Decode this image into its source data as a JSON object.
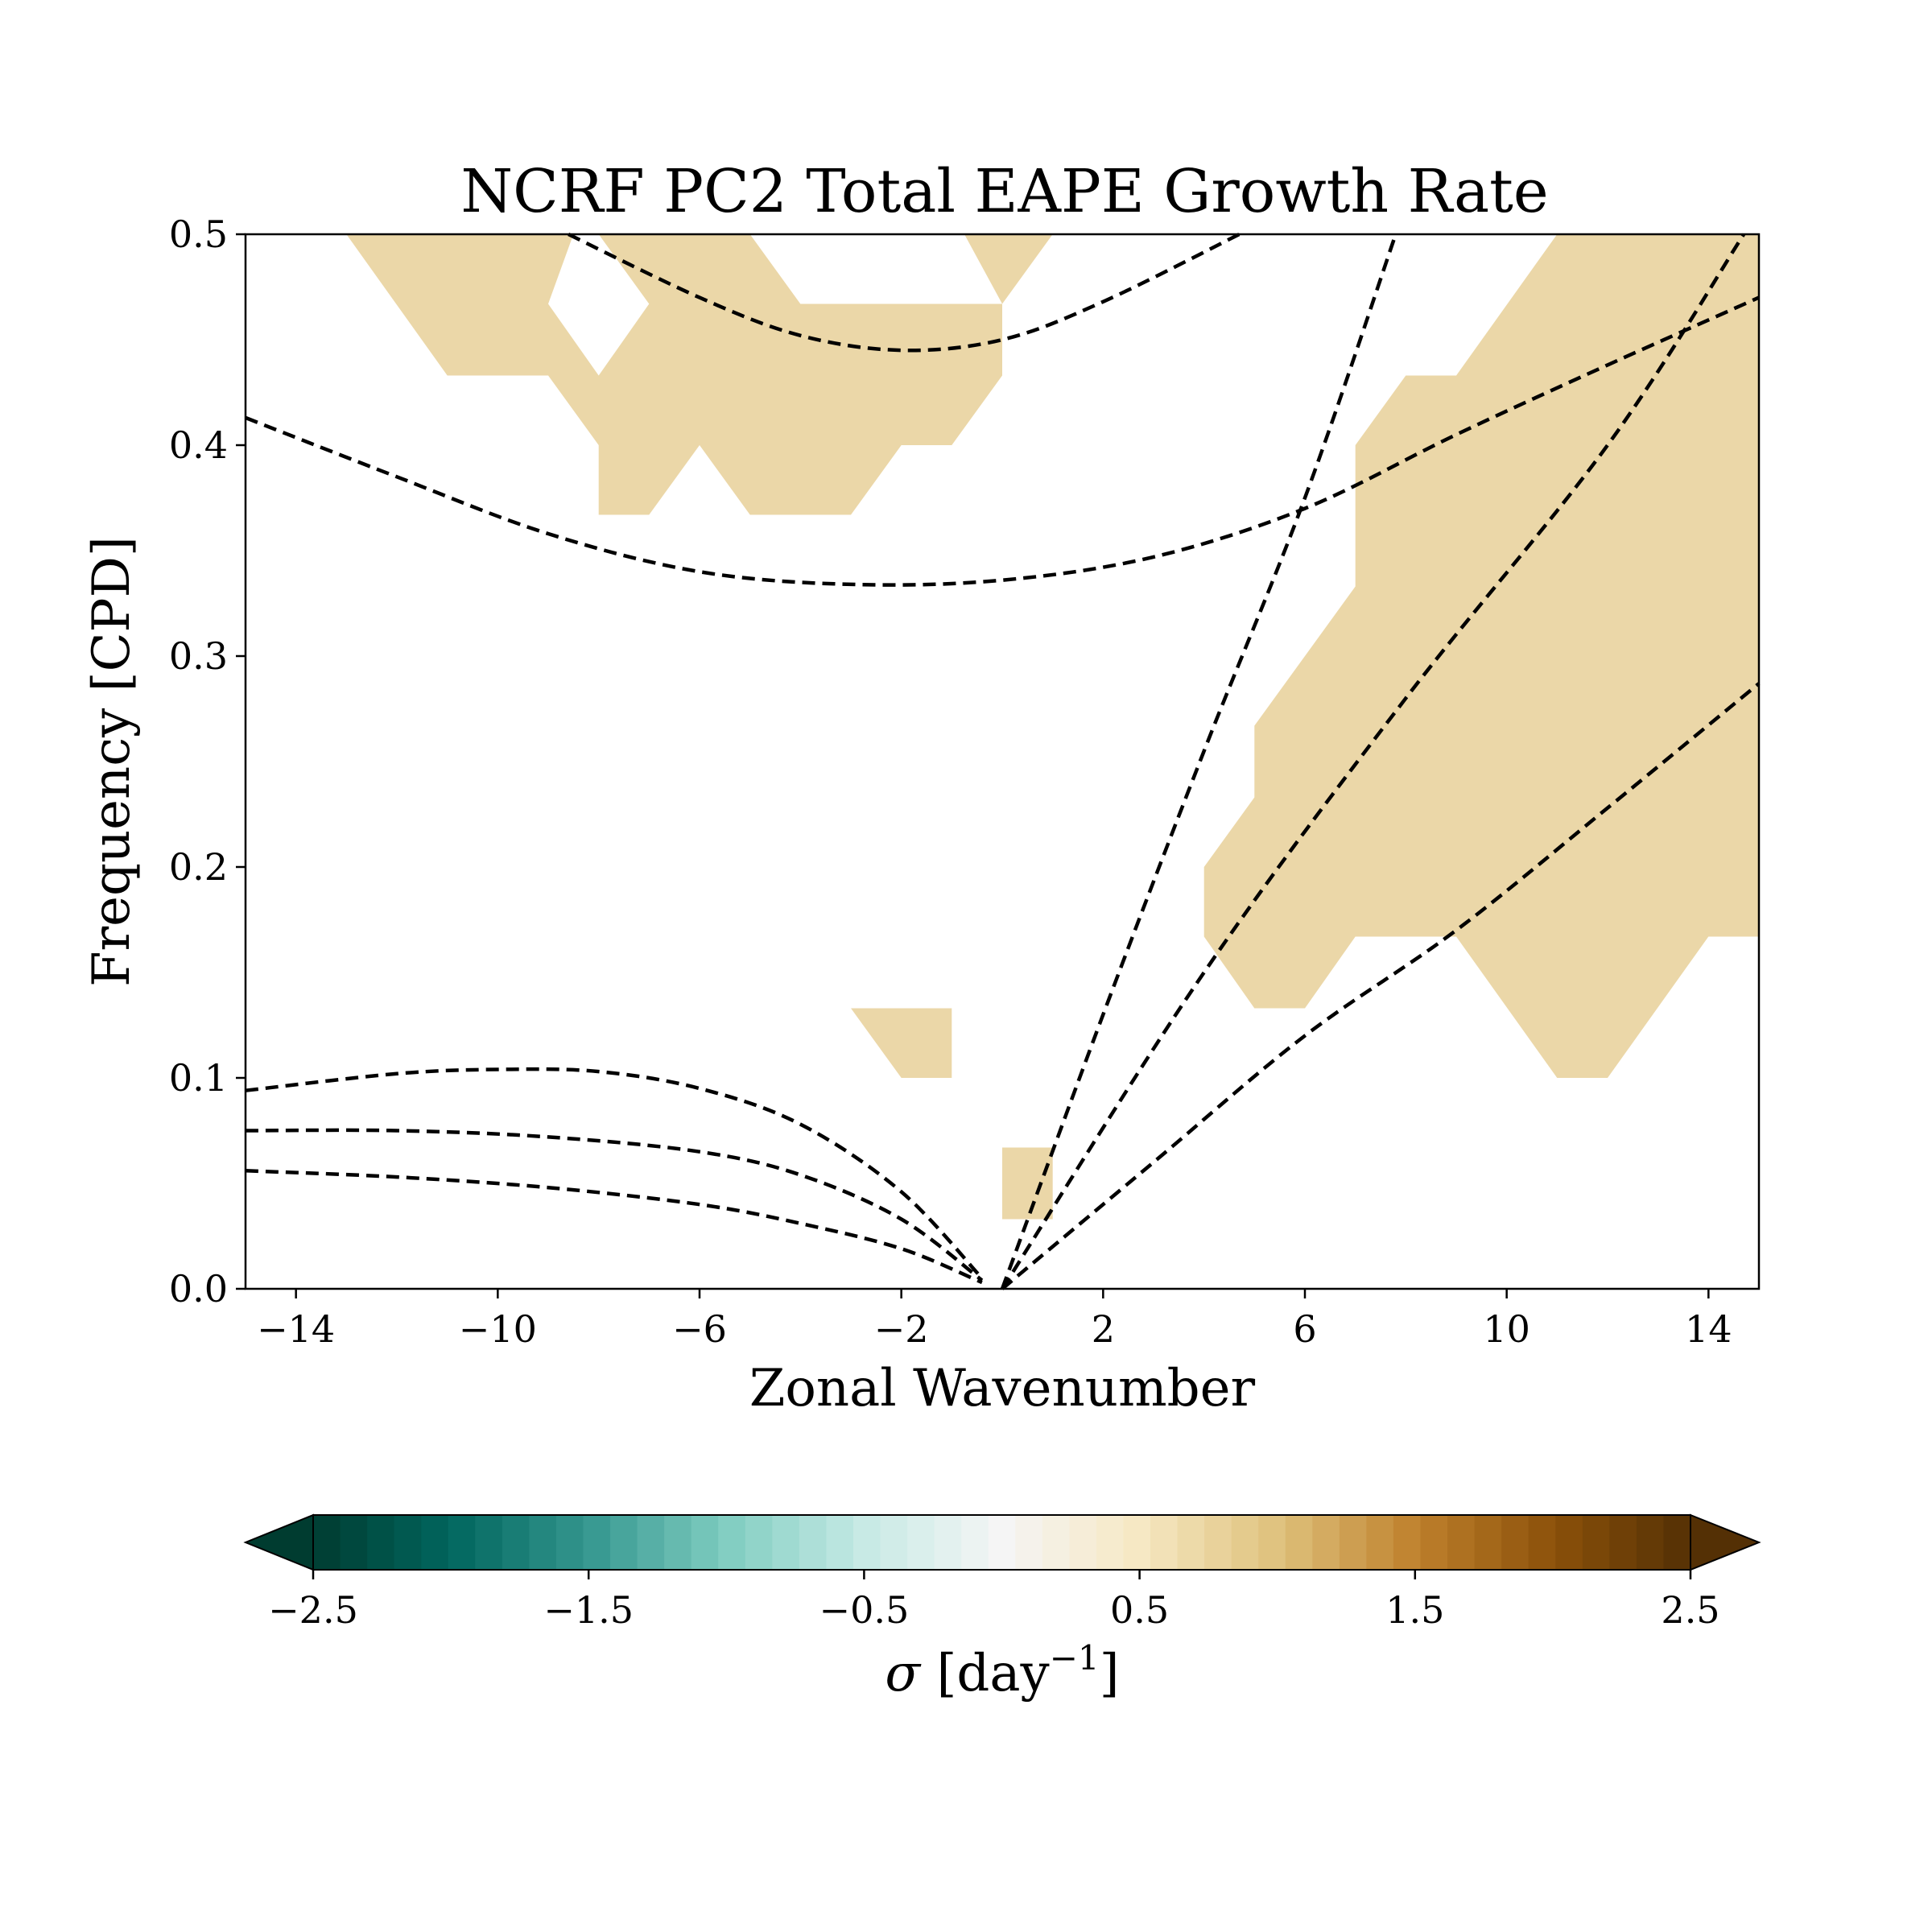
{
  "chart_data": {
    "type": "heatmap",
    "title": "NCRF PC2 Total EAPE Growth Rate",
    "xlabel": "Zonal Wavenumber",
    "ylabel": "Frequency [CPD]",
    "xlim": [
      -15,
      15
    ],
    "ylim": [
      0,
      0.5
    ],
    "xticks": [
      -14,
      -10,
      -6,
      -2,
      2,
      6,
      10,
      14
    ],
    "xtick_labels": [
      "−14",
      "−10",
      "−6",
      "−2",
      "2",
      "6",
      "10",
      "14"
    ],
    "yticks": [
      0.0,
      0.1,
      0.2,
      0.3,
      0.4,
      0.5
    ],
    "ytick_labels": [
      "0.0",
      "0.1",
      "0.2",
      "0.3",
      "0.4",
      "0.5"
    ],
    "fill_color": "#ebd7a8",
    "filled_regions": [
      {
        "level": 0.75,
        "polygon": [
          [
            -13,
            0.5
          ],
          [
            -11,
            0.433
          ],
          [
            -9,
            0.433
          ],
          [
            -8,
            0.4
          ],
          [
            -8,
            0.367
          ],
          [
            -7,
            0.367
          ],
          [
            -6,
            0.4
          ],
          [
            -5,
            0.367
          ],
          [
            -3,
            0.367
          ],
          [
            -2,
            0.4
          ],
          [
            -1,
            0.4
          ],
          [
            0,
            0.433
          ],
          [
            0,
            0.467
          ],
          [
            1,
            0.5
          ],
          [
            -0.75,
            0.5
          ],
          [
            0,
            0.467
          ],
          [
            -1,
            0.467
          ],
          [
            -4,
            0.467
          ],
          [
            -5,
            0.5
          ],
          [
            -8,
            0.5
          ],
          [
            -7,
            0.467
          ],
          [
            -8,
            0.433
          ],
          [
            -9,
            0.467
          ],
          [
            -8.5,
            0.5
          ]
        ]
      },
      {
        "level": 0.75,
        "polygon": [
          [
            11,
            0.5
          ],
          [
            15,
            0.5
          ],
          [
            15,
            0.167
          ],
          [
            14,
            0.167
          ],
          [
            12,
            0.1
          ],
          [
            11,
            0.1
          ],
          [
            9,
            0.167
          ],
          [
            7,
            0.167
          ],
          [
            6,
            0.133
          ],
          [
            5,
            0.133
          ],
          [
            4,
            0.167
          ],
          [
            4,
            0.2
          ],
          [
            5,
            0.233
          ],
          [
            5,
            0.267
          ],
          [
            7,
            0.333
          ],
          [
            7,
            0.4
          ],
          [
            8,
            0.433
          ],
          [
            9,
            0.433
          ]
        ]
      },
      {
        "level": 0.75,
        "polygon": [
          [
            -3,
            0.133
          ],
          [
            -1,
            0.133
          ],
          [
            -1,
            0.1
          ],
          [
            -2,
            0.1
          ]
        ]
      },
      {
        "level": 0.75,
        "polygon": [
          [
            0,
            0.067
          ],
          [
            1,
            0.067
          ],
          [
            1,
            0.033
          ],
          [
            0,
            0.033
          ]
        ]
      }
    ],
    "dispersion_curves": [
      {
        "points": [
          [
            -8.6,
            0.5
          ],
          [
            -6,
            0.47
          ],
          [
            -4,
            0.452
          ],
          [
            -2,
            0.445
          ],
          [
            0,
            0.45
          ],
          [
            2,
            0.468
          ],
          [
            4.7,
            0.5
          ]
        ]
      },
      {
        "points": [
          [
            -15,
            0.413
          ],
          [
            -12,
            0.385
          ],
          [
            -9,
            0.358
          ],
          [
            -6,
            0.34
          ],
          [
            -3,
            0.334
          ],
          [
            0,
            0.336
          ],
          [
            3,
            0.347
          ],
          [
            6,
            0.37
          ],
          [
            9,
            0.405
          ],
          [
            12,
            0.438
          ],
          [
            15,
            0.47
          ]
        ]
      },
      {
        "points": [
          [
            0,
            0
          ],
          [
            2,
            0.13
          ],
          [
            4,
            0.255
          ],
          [
            6,
            0.375
          ],
          [
            7.8,
            0.5
          ]
        ]
      },
      {
        "points": [
          [
            0,
            0
          ],
          [
            4,
            0.15
          ],
          [
            8,
            0.28
          ],
          [
            12,
            0.4
          ],
          [
            14.7,
            0.5
          ]
        ]
      },
      {
        "points": [
          [
            0,
            0
          ],
          [
            3,
            0.06
          ],
          [
            6,
            0.12
          ],
          [
            9,
            0.17
          ],
          [
            12,
            0.228
          ],
          [
            15,
            0.287
          ]
        ]
      },
      {
        "points": [
          [
            -15,
            0.094
          ],
          [
            -12,
            0.102
          ],
          [
            -10,
            0.104
          ],
          [
            -8,
            0.103
          ],
          [
            -6,
            0.095
          ],
          [
            -4,
            0.078
          ],
          [
            -2,
            0.046
          ],
          [
            -0.4,
            0.005
          ]
        ]
      },
      {
        "points": [
          [
            -15,
            0.075
          ],
          [
            -12,
            0.075
          ],
          [
            -9,
            0.072
          ],
          [
            -6,
            0.065
          ],
          [
            -4,
            0.054
          ],
          [
            -2,
            0.033
          ],
          [
            -0.4,
            0.004
          ]
        ]
      },
      {
        "points": [
          [
            -15,
            0.056
          ],
          [
            -12,
            0.053
          ],
          [
            -9,
            0.048
          ],
          [
            -6,
            0.04
          ],
          [
            -4,
            0.031
          ],
          [
            -2,
            0.019
          ],
          [
            -0.4,
            0.003
          ]
        ]
      }
    ],
    "colorbar": {
      "label_symbol": "σ",
      "label_units": " [day",
      "label_exp": "−1",
      "label_close": "]",
      "min": -2.5,
      "max": 2.5,
      "ticks": [
        -2.5,
        -1.5,
        -0.5,
        0.5,
        1.5,
        2.5
      ],
      "tick_labels": [
        "−2.5",
        "−1.5",
        "−0.5",
        "0.5",
        "1.5",
        "2.5"
      ],
      "colormap": "BrBG_r",
      "extend": "both",
      "colors": [
        "#003c30",
        "#01665e",
        "#35978f",
        "#80cdc1",
        "#c7eae5",
        "#f5f5f5",
        "#f6e8c3",
        "#dfc27d",
        "#bf812d",
        "#8c510a",
        "#543005"
      ]
    }
  }
}
